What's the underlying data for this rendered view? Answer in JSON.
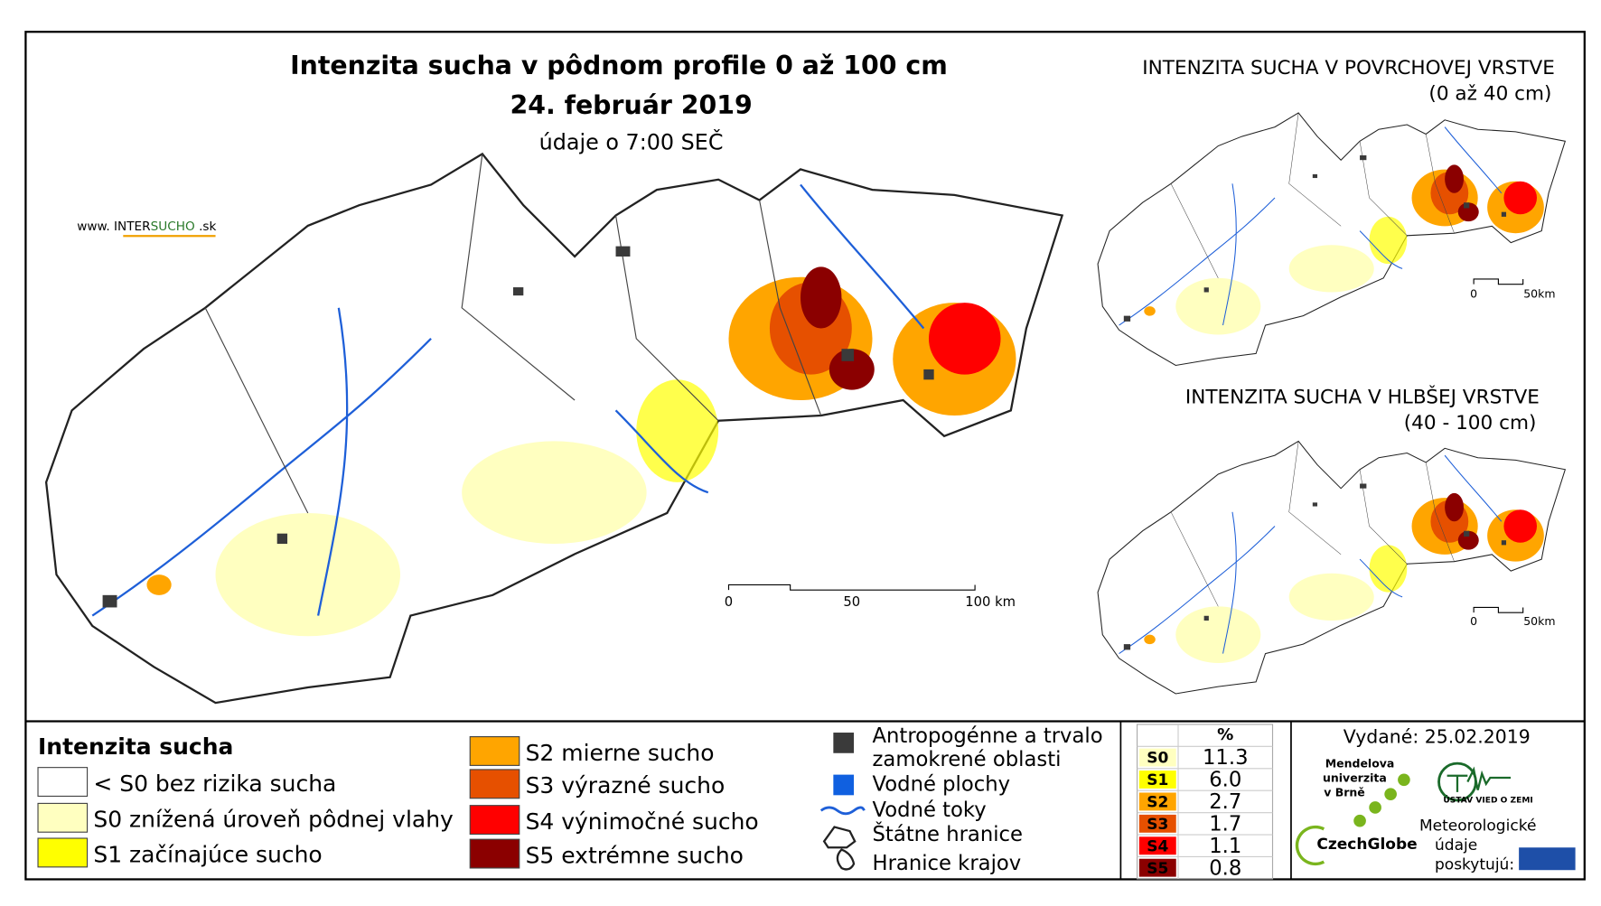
{
  "title": "Intenzita sucha v pôdnom profile 0 až 100 cm",
  "date": "24. február 2019",
  "time_note": "údaje o 7:00 SEČ",
  "website": [
    "www. INTER",
    "SUCHO",
    " .sk"
  ],
  "main_scale": [
    "0",
    "50",
    "100 km"
  ],
  "insets": [
    {
      "title": "INTENZITA SUCHA V POVRCHOVEJ VRSTVE",
      "subtitle": "(0 až 40 cm)",
      "scale": [
        "0",
        "50km"
      ]
    },
    {
      "title": "INTENZITA SUCHA V HLBŠEJ VRSTVE",
      "subtitle": "(40 - 100 cm)",
      "scale": [
        "0",
        "50km"
      ]
    }
  ],
  "legend": {
    "title": "Intenzita sucha",
    "classes": [
      {
        "label": "< S0 bez rizika sucha",
        "color": "#ffffff"
      },
      {
        "label": "S0 znížená úroveň pôdnej vlahy",
        "color": "#ffffc0"
      },
      {
        "label": "S1 začínajúce sucho",
        "color": "#ffff00"
      },
      {
        "label": "S2 mierne sucho",
        "color": "#ffa500"
      },
      {
        "label": "S3 výrazné sucho",
        "color": "#e65000"
      },
      {
        "label": "S4 výnimočné sucho",
        "color": "#ff0000"
      },
      {
        "label": "S5 extrémne sucho",
        "color": "#8b0000"
      }
    ],
    "layers": [
      [
        "Antropogénne a trvalo",
        "zamokrené oblasti"
      ],
      [
        "Vodné plochy"
      ],
      [
        "Vodné toky"
      ],
      [
        "Štátne hranice"
      ],
      [
        "Hranice krajov"
      ]
    ]
  },
  "stats": {
    "header": "%",
    "rows": [
      [
        "S0",
        "11.3"
      ],
      [
        "S1",
        "6.0"
      ],
      [
        "S2",
        "2.7"
      ],
      [
        "S3",
        "1.7"
      ],
      [
        "S4",
        "1.1"
      ],
      [
        "S5",
        "0.8"
      ]
    ]
  },
  "issued": "Vydané: 25.02.2019",
  "logos": {
    "mendel": [
      "Mendelova",
      "univerzita",
      "v Brně"
    ],
    "czechglobe": "CzechGlobe",
    "uvz": "ÚSTAV VIED O ZEMI",
    "shmu_note": [
      "Meteorologické",
      "údaje",
      "poskytujú:"
    ]
  }
}
